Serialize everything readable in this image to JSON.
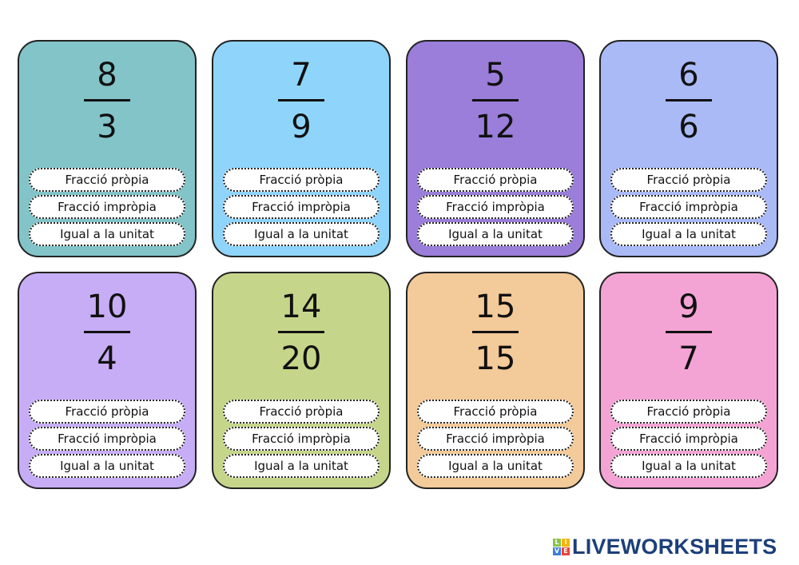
{
  "options": [
    "Fracció pròpia",
    "Fracció impròpia",
    "Igual a la unitat"
  ],
  "cards": [
    {
      "numerator": "8",
      "denominator": "3",
      "color": "#82c4c8"
    },
    {
      "numerator": "7",
      "denominator": "9",
      "color": "#8fd4fb"
    },
    {
      "numerator": "5",
      "denominator": "12",
      "color": "#9a7ed9"
    },
    {
      "numerator": "6",
      "denominator": "6",
      "color": "#aabaf7"
    },
    {
      "numerator": "10",
      "denominator": "4",
      "color": "#c7adf6"
    },
    {
      "numerator": "14",
      "denominator": "20",
      "color": "#c5d68b"
    },
    {
      "numerator": "15",
      "denominator": "15",
      "color": "#f3ca99"
    },
    {
      "numerator": "9",
      "denominator": "7",
      "color": "#f4a4d4"
    }
  ],
  "logo": {
    "text": "LIVEWORKSHEETS",
    "blocks": [
      "L",
      "I",
      "V",
      "E"
    ],
    "block_colors": [
      "#8bc34a",
      "#f5b400",
      "#3f7fd8",
      "#e8443a"
    ],
    "text_color": "#1d3f7a"
  }
}
